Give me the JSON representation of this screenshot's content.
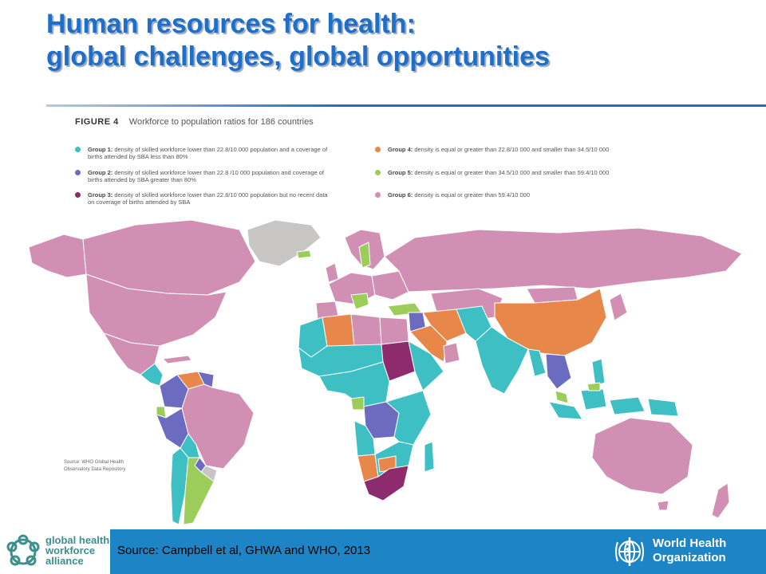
{
  "slide": {
    "title_line1": "Human resources for health:",
    "title_line2": "global challenges, global opportunities"
  },
  "figure": {
    "label": "FIGURE 4",
    "caption": "Workforce to population ratios for 186 countries",
    "source_label": "Source:",
    "source_line1": "WHO Global Health",
    "source_line2": "Observatory Data Repository"
  },
  "legend": [
    {
      "label": "Group 1:",
      "text": "density of skilled workforce lower than 22.8/10 000 population and a coverage of births attended by SBA less than 80%",
      "color": "#3dbfc3"
    },
    {
      "label": "Group 2:",
      "text": "density of skilled workforce lower than 22.8 /10 000 population and coverage of births attended by SBA greater than 80%",
      "color": "#6b6bbf"
    },
    {
      "label": "Group 3:",
      "text": "density of skilled workforce lower than 22.8/10 000 population but no recent data on coverage of births attended by SBA",
      "color": "#8e2a6e"
    },
    {
      "label": "Group 4:",
      "text": "density is equal or greater than 22.8/10 000 and smaller than 34.5/10 000",
      "color": "#e8874a"
    },
    {
      "label": "Group 5:",
      "text": "density is equal or greater than 34.5/10 000 and smaller than 59.4/10 000",
      "color": "#9ccc5a"
    },
    {
      "label": "Group 6:",
      "text": "density is equal or greater than 59.4/10 000",
      "color": "#d08fb3"
    }
  ],
  "colors": {
    "no_data": "#c8c6c4",
    "accent_blue": "#1f6fc9",
    "footer_blue": "#1d84c6"
  },
  "footer": {
    "source": "Source: Campbell et al, GHWA and WHO, 2013",
    "ghwa_line1": "global health",
    "ghwa_line2": "workforce",
    "ghwa_line3": "alliance",
    "ghwa_logo_icon": "ghwa-ring-logo",
    "who_line1": "World Health",
    "who_line2": "Organization",
    "who_logo_icon": "who-emblem"
  }
}
